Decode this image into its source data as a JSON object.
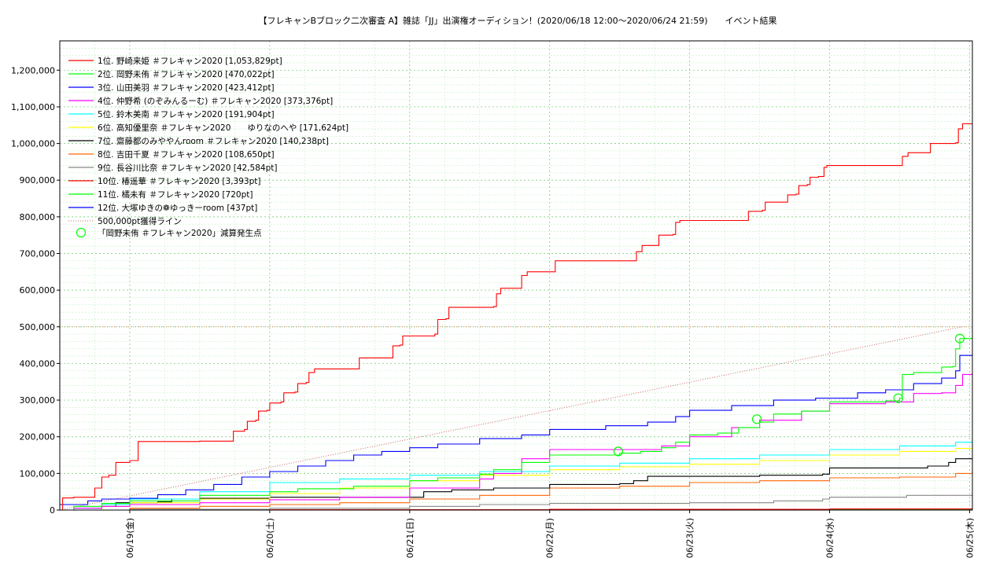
{
  "chart_data": {
    "type": "line",
    "title": "【フレキャンBブロック二次審査 A】雑誌「JJ」出演権オーディション！(2020/06/18 12:00～2020/06/24 21:59)　　イベント結果",
    "xlabel": "",
    "ylabel": "",
    "x_ticks": [
      "06/19(金)",
      "06/20(土)",
      "06/21(日)",
      "06/22(月)",
      "06/23(火)",
      "06/24(水)",
      "06/25(木)"
    ],
    "x_tick_days": [
      1,
      2,
      3,
      4,
      5,
      6,
      7
    ],
    "xlim_days": [
      0.5,
      7.02
    ],
    "ylim": [
      0,
      1280000
    ],
    "y_ticks": [
      0,
      100000,
      200000,
      300000,
      400000,
      500000,
      600000,
      700000,
      800000,
      900000,
      1000000,
      1100000,
      1200000
    ],
    "y_tick_labels": [
      "0",
      "100,000",
      "200,000",
      "300,000",
      "400,000",
      "500,000",
      "600,000",
      "700,000",
      "800,000",
      "900,000",
      "1,000,000",
      "1,100,000",
      "1,200,000"
    ],
    "grid": true,
    "legend_position": "top-left",
    "series": [
      {
        "name": "1位. 野崎来姫 ＃フレキャン2020 [1,053,829pt]",
        "color": "#ff0000",
        "points": [
          [
            0.5,
            0
          ],
          [
            0.52,
            33000
          ],
          [
            0.6,
            35000
          ],
          [
            0.7,
            35000
          ],
          [
            0.75,
            60000
          ],
          [
            0.8,
            90000
          ],
          [
            0.85,
            95000
          ],
          [
            0.88,
            95000
          ],
          [
            0.9,
            130000
          ],
          [
            1.0,
            135000
          ],
          [
            1.04,
            135000
          ],
          [
            1.06,
            187000
          ],
          [
            1.3,
            187000
          ],
          [
            1.5,
            188000
          ],
          [
            1.72,
            188000
          ],
          [
            1.74,
            215000
          ],
          [
            1.82,
            220000
          ],
          [
            1.84,
            242000
          ],
          [
            1.9,
            245000
          ],
          [
            1.92,
            270000
          ],
          [
            1.98,
            272000
          ],
          [
            2.0,
            292000
          ],
          [
            2.08,
            295000
          ],
          [
            2.1,
            320000
          ],
          [
            2.18,
            322000
          ],
          [
            2.2,
            345000
          ],
          [
            2.26,
            348000
          ],
          [
            2.28,
            375000
          ],
          [
            2.32,
            385000
          ],
          [
            2.62,
            385000
          ],
          [
            2.64,
            415000
          ],
          [
            2.86,
            415000
          ],
          [
            2.88,
            448000
          ],
          [
            2.93,
            450000
          ],
          [
            2.95,
            475000
          ],
          [
            3.18,
            480000
          ],
          [
            3.2,
            520000
          ],
          [
            3.26,
            522000
          ],
          [
            3.28,
            553000
          ],
          [
            3.6,
            555000
          ],
          [
            3.62,
            590000
          ],
          [
            3.65,
            605000
          ],
          [
            3.78,
            605000
          ],
          [
            3.8,
            640000
          ],
          [
            3.84,
            650000
          ],
          [
            4.02,
            650000
          ],
          [
            4.04,
            680000
          ],
          [
            4.6,
            680000
          ],
          [
            4.62,
            705000
          ],
          [
            4.66,
            722000
          ],
          [
            4.76,
            722000
          ],
          [
            4.78,
            750000
          ],
          [
            4.88,
            752000
          ],
          [
            4.9,
            785000
          ],
          [
            4.93,
            790000
          ],
          [
            5.4,
            790000
          ],
          [
            5.42,
            815000
          ],
          [
            5.52,
            818000
          ],
          [
            5.54,
            840000
          ],
          [
            5.68,
            840000
          ],
          [
            5.7,
            860000
          ],
          [
            5.76,
            862000
          ],
          [
            5.78,
            885000
          ],
          [
            5.84,
            888000
          ],
          [
            5.86,
            908000
          ],
          [
            5.92,
            910000
          ],
          [
            5.96,
            935000
          ],
          [
            5.98,
            940000
          ],
          [
            6.5,
            940000
          ],
          [
            6.52,
            965000
          ],
          [
            6.56,
            975000
          ],
          [
            6.7,
            975000
          ],
          [
            6.72,
            1000000
          ],
          [
            6.9,
            1002000
          ],
          [
            6.92,
            1040000
          ],
          [
            6.95,
            1053829
          ],
          [
            7.02,
            1053829
          ]
        ]
      },
      {
        "name": "2位. 岡野未侑 ＃フレキャン2020 [470,022pt]",
        "color": "#00ff00",
        "points": [
          [
            0.5,
            0
          ],
          [
            0.6,
            10000
          ],
          [
            0.8,
            18000
          ],
          [
            1.0,
            25000
          ],
          [
            1.5,
            40000
          ],
          [
            2.0,
            50000
          ],
          [
            2.2,
            58000
          ],
          [
            2.6,
            65000
          ],
          [
            3.0,
            80000
          ],
          [
            3.2,
            88000
          ],
          [
            3.5,
            98000
          ],
          [
            3.6,
            110000
          ],
          [
            3.8,
            130000
          ],
          [
            4.0,
            150000
          ],
          [
            4.5,
            155000
          ],
          [
            4.65,
            160000
          ],
          [
            4.8,
            170000
          ],
          [
            4.9,
            185000
          ],
          [
            5.0,
            205000
          ],
          [
            5.2,
            210000
          ],
          [
            5.35,
            225000
          ],
          [
            5.5,
            240000
          ],
          [
            5.6,
            262000
          ],
          [
            5.8,
            270000
          ],
          [
            6.0,
            295000
          ],
          [
            6.4,
            298000
          ],
          [
            6.5,
            305000
          ],
          [
            6.52,
            370000
          ],
          [
            6.6,
            375000
          ],
          [
            6.8,
            390000
          ],
          [
            6.88,
            392000
          ],
          [
            6.9,
            440000
          ],
          [
            6.93,
            468000
          ],
          [
            7.02,
            470022
          ]
        ]
      },
      {
        "name": "3位. 山田美羽 ＃フレキャン2020 [423,412pt]",
        "color": "#0000ff",
        "points": [
          [
            0.5,
            15000
          ],
          [
            0.7,
            25000
          ],
          [
            0.8,
            30000
          ],
          [
            1.0,
            32000
          ],
          [
            1.2,
            42000
          ],
          [
            1.4,
            55000
          ],
          [
            1.6,
            70000
          ],
          [
            1.8,
            90000
          ],
          [
            2.0,
            105000
          ],
          [
            2.2,
            120000
          ],
          [
            2.4,
            135000
          ],
          [
            2.6,
            150000
          ],
          [
            2.8,
            160000
          ],
          [
            3.0,
            170000
          ],
          [
            3.2,
            180000
          ],
          [
            3.5,
            195000
          ],
          [
            3.8,
            205000
          ],
          [
            4.0,
            220000
          ],
          [
            4.4,
            230000
          ],
          [
            4.7,
            240000
          ],
          [
            4.9,
            255000
          ],
          [
            5.0,
            272000
          ],
          [
            5.3,
            285000
          ],
          [
            5.6,
            300000
          ],
          [
            5.9,
            305000
          ],
          [
            6.2,
            320000
          ],
          [
            6.4,
            328000
          ],
          [
            6.6,
            345000
          ],
          [
            6.8,
            360000
          ],
          [
            6.9,
            380000
          ],
          [
            6.93,
            422000
          ],
          [
            7.02,
            423412
          ]
        ]
      },
      {
        "name": "4位. 仲野希 (のぞみんるーむ) ＃フレキャン2020 [373,376pt]",
        "color": "#ff00ff",
        "points": [
          [
            0.5,
            0
          ],
          [
            0.6,
            5000
          ],
          [
            0.8,
            10000
          ],
          [
            1.0,
            15000
          ],
          [
            1.5,
            20000
          ],
          [
            2.0,
            28000
          ],
          [
            2.5,
            35000
          ],
          [
            3.0,
            60000
          ],
          [
            3.5,
            85000
          ],
          [
            3.6,
            100000
          ],
          [
            3.8,
            140000
          ],
          [
            4.0,
            165000
          ],
          [
            4.6,
            165000
          ],
          [
            4.8,
            175000
          ],
          [
            5.0,
            200000
          ],
          [
            5.3,
            225000
          ],
          [
            5.5,
            245000
          ],
          [
            5.8,
            270000
          ],
          [
            6.0,
            290000
          ],
          [
            6.4,
            295000
          ],
          [
            6.6,
            318000
          ],
          [
            6.8,
            320000
          ],
          [
            6.9,
            340000
          ],
          [
            6.95,
            370000
          ],
          [
            7.02,
            373376
          ]
        ]
      },
      {
        "name": "5位. 鈴木美南 ＃フレキャン2020 [191,904pt]",
        "color": "#00ffff",
        "points": [
          [
            0.5,
            0
          ],
          [
            0.6,
            5000
          ],
          [
            0.8,
            15000
          ],
          [
            1.0,
            30000
          ],
          [
            1.5,
            50000
          ],
          [
            2.0,
            75000
          ],
          [
            2.5,
            85000
          ],
          [
            3.0,
            95000
          ],
          [
            3.5,
            105000
          ],
          [
            4.0,
            120000
          ],
          [
            4.5,
            128000
          ],
          [
            5.0,
            140000
          ],
          [
            5.5,
            150000
          ],
          [
            6.0,
            165000
          ],
          [
            6.5,
            175000
          ],
          [
            6.9,
            185000
          ],
          [
            7.02,
            191904
          ]
        ]
      },
      {
        "name": "6位. 高知優里奈 ＃フレキャン2020　　ゆりなのへや [171,624pt]",
        "color": "#ffff00",
        "points": [
          [
            0.5,
            0
          ],
          [
            0.8,
            10000
          ],
          [
            1.0,
            20000
          ],
          [
            1.5,
            30000
          ],
          [
            2.0,
            45000
          ],
          [
            2.5,
            60000
          ],
          [
            3.0,
            80000
          ],
          [
            3.5,
            95000
          ],
          [
            4.0,
            110000
          ],
          [
            4.5,
            118000
          ],
          [
            5.0,
            125000
          ],
          [
            5.5,
            135000
          ],
          [
            6.0,
            150000
          ],
          [
            6.5,
            160000
          ],
          [
            6.9,
            168000
          ],
          [
            7.02,
            171624
          ]
        ]
      },
      {
        "name": "7位. 齋藤都のみややんroom ＃フレキャン2020 [140,238pt]",
        "color": "#000000",
        "points": [
          [
            0.5,
            0
          ],
          [
            0.75,
            0
          ],
          [
            0.8,
            10000
          ],
          [
            0.9,
            20000
          ],
          [
            1.2,
            22000
          ],
          [
            1.3,
            30000
          ],
          [
            1.5,
            32000
          ],
          [
            2.0,
            35000
          ],
          [
            2.5,
            35000
          ],
          [
            3.0,
            35000
          ],
          [
            3.1,
            50000
          ],
          [
            3.3,
            55000
          ],
          [
            3.5,
            55000
          ],
          [
            3.6,
            60000
          ],
          [
            4.0,
            70000
          ],
          [
            4.5,
            72000
          ],
          [
            4.6,
            80000
          ],
          [
            4.7,
            92000
          ],
          [
            5.5,
            95000
          ],
          [
            5.95,
            98000
          ],
          [
            6.0,
            115000
          ],
          [
            6.6,
            115000
          ],
          [
            6.7,
            120000
          ],
          [
            6.85,
            130000
          ],
          [
            6.9,
            140000
          ],
          [
            7.02,
            140238
          ]
        ]
      },
      {
        "name": "8位. 吉田千夏 ＃フレキャン2020 [108,650pt]",
        "color": "#ff6600",
        "points": [
          [
            0.5,
            0
          ],
          [
            1.0,
            5000
          ],
          [
            1.5,
            10000
          ],
          [
            2.0,
            15000
          ],
          [
            2.5,
            20000
          ],
          [
            3.0,
            30000
          ],
          [
            3.5,
            40000
          ],
          [
            4.0,
            60000
          ],
          [
            4.5,
            65000
          ],
          [
            5.0,
            75000
          ],
          [
            5.5,
            80000
          ],
          [
            6.0,
            88000
          ],
          [
            6.5,
            90000
          ],
          [
            6.9,
            100000
          ],
          [
            7.02,
            108650
          ]
        ]
      },
      {
        "name": "9位. 長谷川比奈 ＃フレキャン2020 [42,584pt]",
        "color": "#888888",
        "points": [
          [
            0.5,
            0
          ],
          [
            1.0,
            2000
          ],
          [
            2.0,
            5000
          ],
          [
            3.0,
            10000
          ],
          [
            3.5,
            15000
          ],
          [
            4.0,
            18000
          ],
          [
            5.0,
            20000
          ],
          [
            5.5,
            20000
          ],
          [
            5.6,
            25000
          ],
          [
            5.95,
            30000
          ],
          [
            6.0,
            35000
          ],
          [
            6.5,
            35000
          ],
          [
            6.55,
            40000
          ],
          [
            7.02,
            42584
          ]
        ]
      },
      {
        "name": "10位. 椿遥華 ＃フレキャン2020 [3,393pt]",
        "color": "#ff0000",
        "points": [
          [
            0.5,
            0
          ],
          [
            2.0,
            1000
          ],
          [
            4.0,
            2000
          ],
          [
            6.0,
            3000
          ],
          [
            7.02,
            3393
          ]
        ]
      },
      {
        "name": "11位. 橘未有 ＃フレキャン2020 [720pt]",
        "color": "#00ff00",
        "points": [
          [
            0.5,
            0
          ],
          [
            3.0,
            300
          ],
          [
            5.0,
            600
          ],
          [
            7.02,
            720
          ]
        ]
      },
      {
        "name": "12位. 大塚ゆきの❁ゆっきーroom [437pt]",
        "color": "#0000ff",
        "points": [
          [
            0.5,
            0
          ],
          [
            3.0,
            200
          ],
          [
            5.0,
            350
          ],
          [
            7.02,
            437
          ]
        ]
      }
    ],
    "reference_line": {
      "name": "500,000pt獲得ライン",
      "color": "#cc6666",
      "style": "dotted",
      "points": [
        [
          0.5,
          0
        ],
        [
          6.95,
          500000
        ]
      ],
      "hline_value": 500000
    },
    "markers": {
      "name": "「岡野未侑 ＃フレキャン2020」減算発生点",
      "color": "#00ff00",
      "shape": "circle",
      "points": [
        [
          4.49,
          160000
        ],
        [
          5.48,
          248000
        ],
        [
          6.49,
          305000
        ],
        [
          6.93,
          468000
        ]
      ]
    }
  }
}
